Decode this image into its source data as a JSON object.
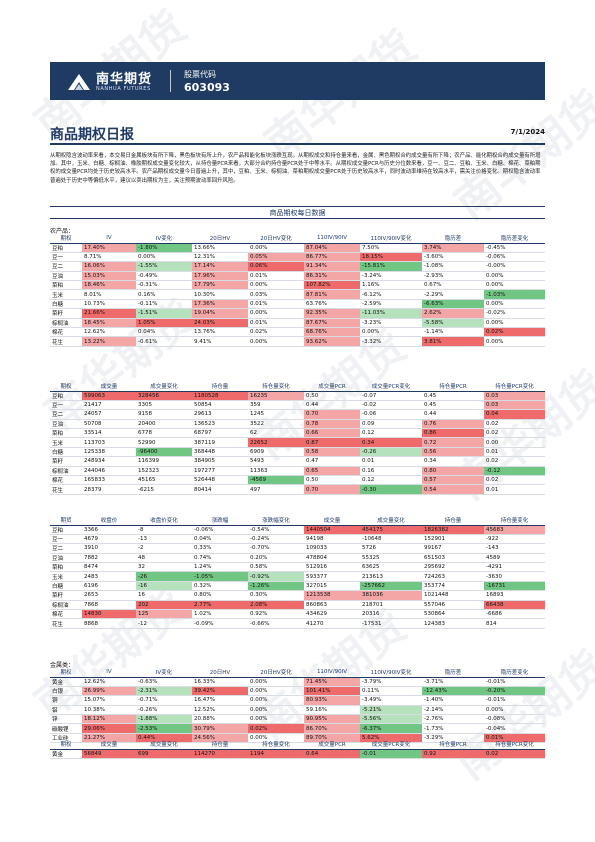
{
  "brand": {
    "name_cn": "南华期货",
    "name_en": "NANHUA FUTURES"
  },
  "stock": {
    "label": "股票代码",
    "code": "603093"
  },
  "report": {
    "title": "商品期权日报",
    "date": "7/1/2024"
  },
  "summary": "从期权隐含波动率来看，本交易日金属板块有所下降，黑色板块有所上升，农产品和能化板块涨跌互现。从期权成交和持仓量来看，金属、黑色期权合约成交量有所下降；农产品、能化期权合约成交量有所增加。其中，玉米、白糖、棕榈油、橡胶期权成交量变化较大，从持仓量PCR来看，大部分合约持仓量PCR处于中等水平。从期权成交量PCR与历史分位数来看，豆一、豆二、豆粕、玉米、白糖、棉花、菜粕期权的成交量PCR均处于历史较高水平。农产品期权成交量今日普遍上升，其中，豆粕、玉米、棕榈油、菜粕期权成交量PCR处于历史较高水平，同时波动率维持在较高水平，需关注价格变化。期权隐含波动率普遍处于历史中等偏低水平，建议以卖出期权为主，关注预期波动率回升风险。",
  "section_title": "商品期权每日数据",
  "agri": {
    "label": "农产品：",
    "iv_headers": [
      "期权",
      "IV",
      "IV变化",
      "20日HV",
      "20日HV变化",
      "110IV/90IV",
      "110IV/90IV变化",
      "隐历差",
      "隐历差变化"
    ],
    "iv_rows": [
      [
        "豆粕",
        "17.40%",
        "-1.80%",
        "13.66%",
        "0.00%",
        "87.04%",
        "7.50%",
        "3.74%",
        "-0.45%"
      ],
      [
        "豆一",
        "8.71%",
        "0.00%",
        "12.31%",
        "0.05%",
        "86.77%",
        "18.15%",
        "-3.60%",
        "-0.06%"
      ],
      [
        "豆二",
        "16.06%",
        "-1.55%",
        "17.14%",
        "0.06%",
        "91.34%",
        "-15.81%",
        "-1.08%",
        "-0.00%"
      ],
      [
        "豆油",
        "15.03%",
        "-0.49%",
        "17.96%",
        "0.01%",
        "86.31%",
        "-3.24%",
        "-2.93%",
        "0.00%"
      ],
      [
        "菜粕",
        "18.46%",
        "-0.31%",
        "17.79%",
        "0.00%",
        "107.82%",
        "1.16%",
        "0.67%",
        "0.00%"
      ],
      [
        "玉米",
        "8.01%",
        "0.16%",
        "10.30%",
        "0.03%",
        "87.81%",
        "-6.12%",
        "-2.29%",
        "-1.03%"
      ],
      [
        "白糖",
        "10.73%",
        "-0.11%",
        "17.36%",
        "0.01%",
        "63.76%",
        "-2.59%",
        "-6.63%",
        "0.00%"
      ],
      [
        "菜籽",
        "21.66%",
        "-1.51%",
        "19.04%",
        "0.00%",
        "92.35%",
        "-11.03%",
        "2.62%",
        "-0.02%"
      ],
      [
        "棕榈油",
        "18.45%",
        "1.05%",
        "24.03%",
        "0.01%",
        "87.67%",
        "-3.23%",
        "-5.58%",
        "0.00%"
      ],
      [
        "棉花",
        "12.62%",
        "0.04%",
        "13.76%",
        "0.02%",
        "68.76%",
        "0.00%",
        "-1.14%",
        "0.02%"
      ],
      [
        "花生",
        "13.22%",
        "-0.61%",
        "9.41%",
        "0.00%",
        "93.62%",
        "-3.32%",
        "3.81%",
        "0.00%"
      ]
    ],
    "vol_headers": [
      "期权",
      "成交量",
      "成交量变化",
      "持仓量",
      "持仓量变化",
      "成交量PCR",
      "成交量PCR变化",
      "持仓量PCR",
      "持仓量PCR变化"
    ],
    "vol_rows": [
      [
        "豆粕",
        "599063",
        "328456",
        "1180528",
        "16235",
        "0.50",
        "-0.07",
        "0.45",
        "0.03"
      ],
      [
        "豆一",
        "21417",
        "3305",
        "50854",
        "359",
        "0.44",
        "-0.02",
        "0.45",
        "0.03"
      ],
      [
        "豆二",
        "24057",
        "9158",
        "29613",
        "1245",
        "0.70",
        "-0.06",
        "0.44",
        "0.04"
      ],
      [
        "豆油",
        "50708",
        "20400",
        "136523",
        "3522",
        "0.78",
        "0.09",
        "0.76",
        "0.02"
      ],
      [
        "菜粕",
        "33514",
        "6778",
        "68797",
        "62",
        "0.66",
        "0.12",
        "0.86",
        "0.02"
      ],
      [
        "玉米",
        "113703",
        "52990",
        "387119",
        "22652",
        "0.87",
        "0.34",
        "0.72",
        "0.00"
      ],
      [
        "白糖",
        "125338",
        "-96400",
        "368448",
        "6909",
        "0.58",
        "-0.26",
        "0.56",
        "0.01"
      ],
      [
        "菜籽",
        "248934",
        "116399",
        "384905",
        "5493",
        "0.47",
        "0.01",
        "0.34",
        "0.02"
      ],
      [
        "棕榈油",
        "244046",
        "152323",
        "197277",
        "11363",
        "0.65",
        "0.16",
        "0.80",
        "-0.12"
      ],
      [
        "棉花",
        "165833",
        "45165",
        "526448",
        "-4569",
        "0.50",
        "0.12",
        "0.57",
        "0.02"
      ],
      [
        "花生",
        "28379",
        "-6215",
        "80414",
        "497",
        "0.70",
        "-0.30",
        "0.54",
        "0.01"
      ]
    ],
    "fut_headers": [
      "期货",
      "收盘价",
      "收盘价变化",
      "涨跌幅",
      "涨跌幅变化",
      "成交量",
      "成交量变化",
      "持仓量",
      "持仓量变化"
    ],
    "fut_rows": [
      [
        "豆粕",
        "3366",
        "-8",
        "-0.06%",
        "-0.54%",
        "1440504",
        "454175",
        "1826382",
        "45683"
      ],
      [
        "豆一",
        "4679",
        "-13",
        "0.04%",
        "-0.24%",
        "94198",
        "-10648",
        "152901",
        "-922"
      ],
      [
        "豆二",
        "3910",
        "-2",
        "0.33%",
        "-0.70%",
        "109033",
        "5726",
        "99167",
        "-143"
      ],
      [
        "豆油",
        "7882",
        "48",
        "0.74%",
        "0.20%",
        "478804",
        "55325",
        "651503",
        "4589"
      ],
      [
        "菜粕",
        "8474",
        "32",
        "1.24%",
        "0.58%",
        "512916",
        "63625",
        "295692",
        "-4291"
      ],
      [
        "玉米",
        "2483",
        "-26",
        "-1.05%",
        "-0.92%",
        "593377",
        "213613",
        "724263",
        "-3630"
      ],
      [
        "白糖",
        "6196",
        "-16",
        "0.32%",
        "-1.26%",
        "327015",
        "-257662",
        "353774",
        "-16731"
      ],
      [
        "菜籽",
        "2653",
        "16",
        "0.80%",
        "0.30%",
        "1213538",
        "381036",
        "1021448",
        "16893"
      ],
      [
        "棕榈油",
        "7868",
        "202",
        "2.77%",
        "2.08%",
        "860863",
        "218701",
        "557046",
        "66438"
      ],
      [
        "棉花",
        "14830",
        "125",
        "1.02%",
        "0.92%",
        "434629",
        "20316",
        "530864",
        "-6686"
      ],
      [
        "花生",
        "8868",
        "-12",
        "-0.09%",
        "-0.66%",
        "41270",
        "-17531",
        "124383",
        "814"
      ]
    ]
  },
  "metal": {
    "label": "金属类：",
    "iv_headers": [
      "期权",
      "IV",
      "IV变化",
      "20日HV",
      "20日HV变化",
      "110IV/90IV",
      "110IV/90IV变化",
      "隐历差",
      "隐历差变化"
    ],
    "iv_rows": [
      [
        "黄金",
        "12.62%",
        "-0.63%",
        "16.33%",
        "0.00%",
        "71.45%",
        "-3.79%",
        "-3.71%",
        "-0.01%"
      ],
      [
        "白银",
        "26.99%",
        "-2.31%",
        "39.42%",
        "0.00%",
        "101.41%",
        "0.11%",
        "-12.43%",
        "-0.20%"
      ],
      [
        "铜",
        "15.07%",
        "-0.71%",
        "16.47%",
        "0.00%",
        "80.93%",
        "-3.49%",
        "-1.40%",
        "-0.01%"
      ],
      [
        "铝",
        "10.38%",
        "-0.26%",
        "12.52%",
        "0.00%",
        "59.16%",
        "-5.21%",
        "-2.14%",
        "0.00%"
      ],
      [
        "锌",
        "18.12%",
        "-1.88%",
        "20.88%",
        "0.00%",
        "90.95%",
        "-5.56%",
        "-2.76%",
        "-0.08%"
      ],
      [
        "碳酸锂",
        "29.06%",
        "-2.53%",
        "30.79%",
        "0.02%",
        "86.70%",
        "-6.37%",
        "-1.73%",
        "-0.04%"
      ],
      [
        "工业硅",
        "21.27%",
        "0.44%",
        "24.56%",
        "0.00%",
        "89.70%",
        "5.62%",
        "-3.29%",
        "0.01%"
      ]
    ],
    "vol_headers": [
      "期权",
      "成交量",
      "成交量变化",
      "持仓量",
      "持仓量变化",
      "成交量PCR",
      "成交量PCR变化",
      "持仓量PCR",
      "持仓量PCR变化"
    ],
    "vol_rows": [
      [
        "黄金",
        "56849",
        "699",
        "114270",
        "1194",
        "0.64",
        "-0.01",
        "0.92",
        "0.02"
      ]
    ]
  }
}
